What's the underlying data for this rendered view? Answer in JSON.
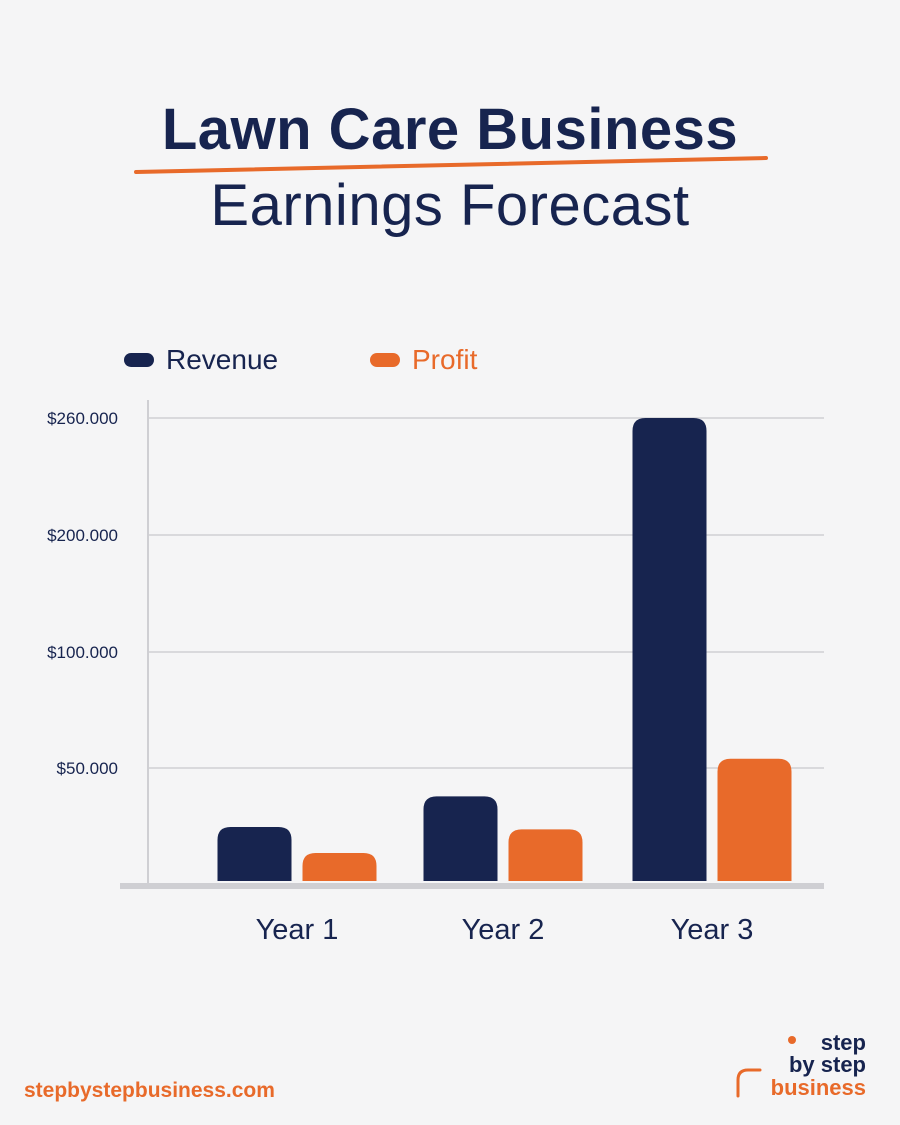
{
  "header": {
    "title_line1": "Lawn Care Business",
    "title_line2": "Earnings Forecast"
  },
  "colors": {
    "navy": "#17244f",
    "orange": "#e86a2a",
    "grid": "#d9d9dc",
    "axis": "#cfcfd3",
    "background": "#f5f5f6"
  },
  "chart_data": {
    "type": "bar",
    "categories": [
      "Year 1",
      "Year 2",
      "Year 3"
    ],
    "series": [
      {
        "name": "Revenue",
        "color": "#17244f",
        "values": [
          25000,
          38000,
          260000
        ]
      },
      {
        "name": "Profit",
        "color": "#e86a2a",
        "values": [
          14000,
          24000,
          54000
        ]
      }
    ],
    "y_ticks": [
      {
        "label": "$50.000",
        "value": 50000
      },
      {
        "label": "$100.000",
        "value": 100000
      },
      {
        "label": "$200.000",
        "value": 200000
      },
      {
        "label": "$260.000",
        "value": 260000
      }
    ],
    "y_scale_note": "non-linear axis: tick labels are evenly spaced by rank, not by value",
    "grid": true,
    "legend_position": "top-left"
  },
  "footer": {
    "url": "stepbystepbusiness.com",
    "logo_line1": "step",
    "logo_line2": "by step",
    "logo_line3": "business"
  }
}
